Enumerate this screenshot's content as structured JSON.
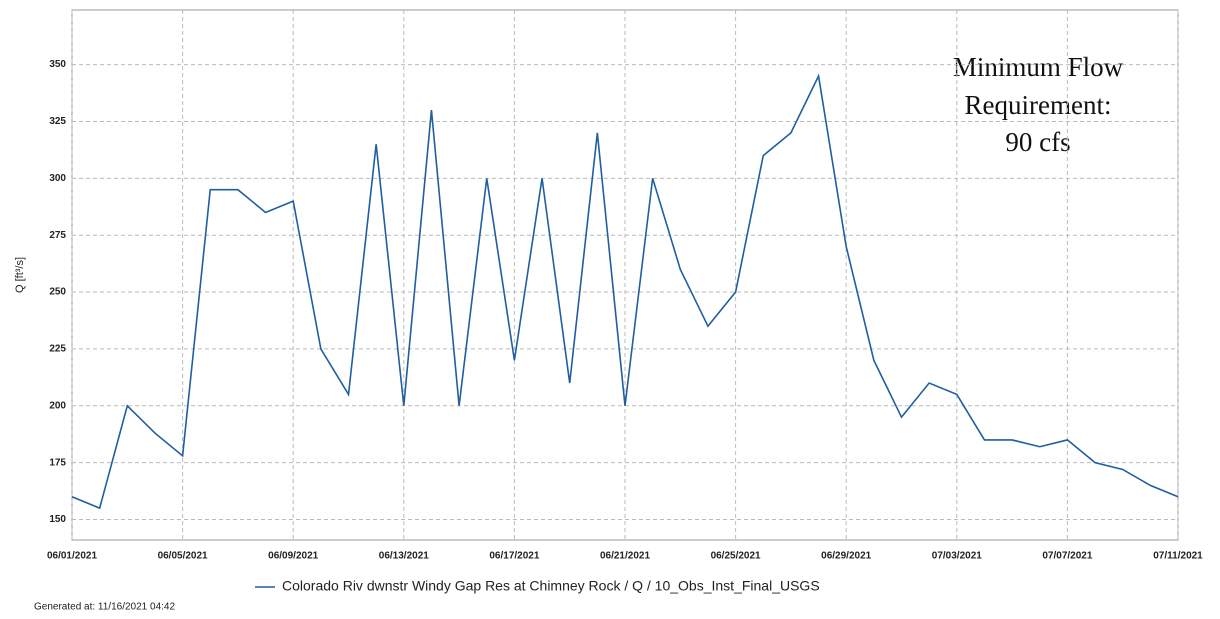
{
  "chart_data": {
    "type": "line",
    "y_label": "Q [ft³/s]",
    "annotation": [
      "Minimum Flow",
      "Requirement:",
      "90 cfs"
    ],
    "footer": "Generated at: 11/16/2021 04:42",
    "grid": true,
    "x": [
      "06/01/2021",
      "06/02/2021",
      "06/03/2021",
      "06/04/2021",
      "06/05/2021",
      "06/06/2021",
      "06/07/2021",
      "06/08/2021",
      "06/09/2021",
      "06/10/2021",
      "06/11/2021",
      "06/12/2021",
      "06/13/2021",
      "06/14/2021",
      "06/15/2021",
      "06/16/2021",
      "06/17/2021",
      "06/18/2021",
      "06/19/2021",
      "06/20/2021",
      "06/21/2021",
      "06/22/2021",
      "06/23/2021",
      "06/24/2021",
      "06/25/2021",
      "06/26/2021",
      "06/27/2021",
      "06/28/2021",
      "06/29/2021",
      "06/30/2021",
      "07/01/2021",
      "07/02/2021",
      "07/03/2021",
      "07/04/2021",
      "07/05/2021",
      "07/06/2021",
      "07/07/2021",
      "07/08/2021",
      "07/09/2021",
      "07/10/2021",
      "07/11/2021"
    ],
    "xticks": [
      "06/01/2021",
      "06/05/2021",
      "06/09/2021",
      "06/13/2021",
      "06/17/2021",
      "06/21/2021",
      "06/25/2021",
      "06/29/2021",
      "07/03/2021",
      "07/07/2021",
      "07/11/2021"
    ],
    "series": [
      {
        "name": "Colorado Riv dwnstr Windy Gap Res at Chimney Rock / Q / 10_Obs_Inst_Final_USGS",
        "color": "#1f5f9f",
        "values": [
          160,
          155,
          200,
          188,
          178,
          295,
          295,
          285,
          290,
          225,
          205,
          315,
          200,
          330,
          200,
          300,
          220,
          300,
          210,
          320,
          200,
          300,
          260,
          235,
          250,
          310,
          320,
          345,
          270,
          220,
          195,
          210,
          205,
          185,
          185,
          182,
          185,
          175,
          172,
          165,
          160
        ]
      }
    ],
    "ylim": [
      141,
      374
    ],
    "yticks": [
      150,
      175,
      200,
      225,
      250,
      275,
      300,
      325,
      350
    ]
  }
}
